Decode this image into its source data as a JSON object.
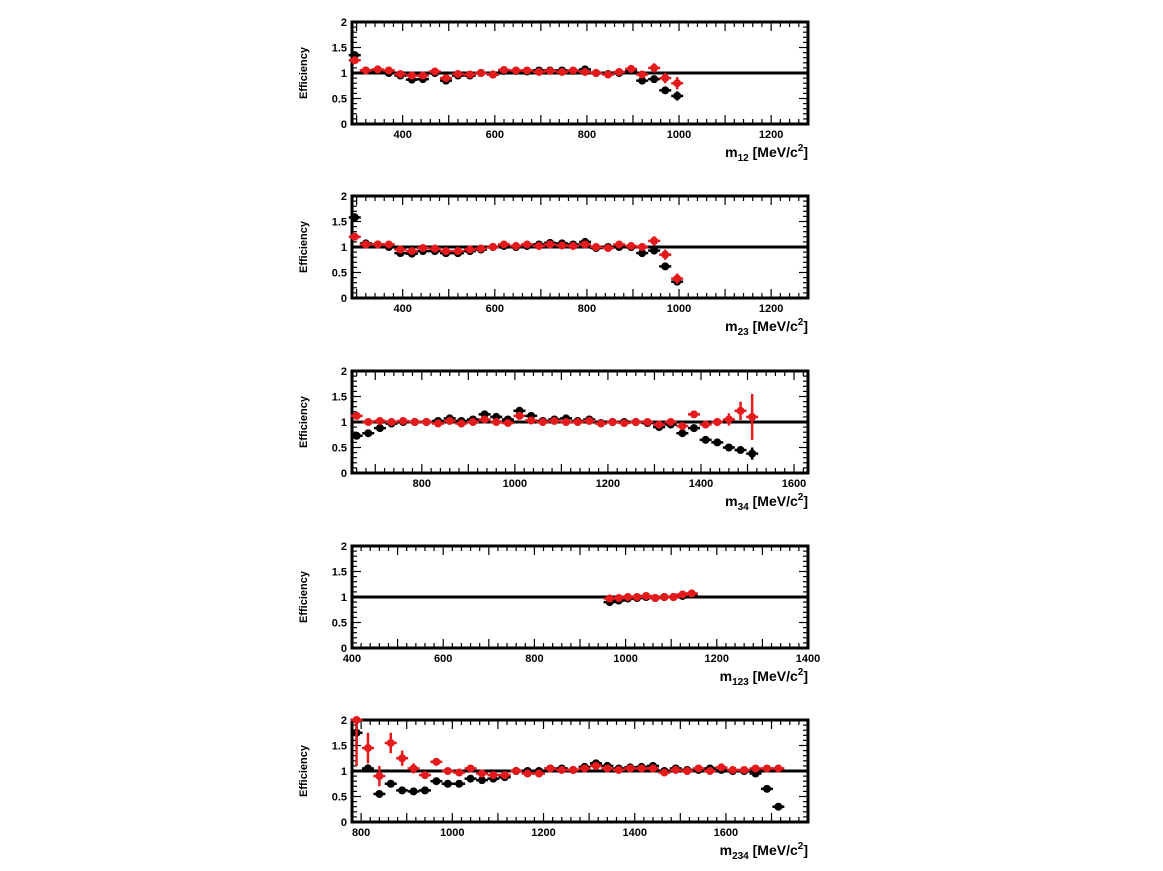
{
  "colors": {
    "black_series": "#000000",
    "red_series": "#e41a1c",
    "axis": "#000000",
    "background": "#ffffff"
  },
  "chart_data": [
    {
      "type": "scatter",
      "xlim": [
        290,
        1280
      ],
      "ylim": [
        0,
        2
      ],
      "x_ticks": [
        400,
        600,
        800,
        1000,
        1200
      ],
      "y_ticks": [
        0,
        0.5,
        1,
        1.5,
        2
      ],
      "y_tick_labels": [
        "0",
        "0.5",
        "1",
        "1.5",
        "2"
      ],
      "ylabel": "Efficiency",
      "xlabel_main": "m",
      "xlabel_sub": "12",
      "xlabel_unit": " [MeV/c",
      "xlabel_sup": "2",
      "xlabel_close": "]",
      "reference_line": 1,
      "series": [
        {
          "color": "black",
          "x": [
            296,
            320,
            346,
            370,
            395,
            420,
            444,
            470,
            494,
            520,
            546,
            570,
            596,
            620,
            646,
            670,
            696,
            720,
            746,
            770,
            796,
            820,
            846,
            870,
            896,
            920,
            946,
            970,
            996
          ],
          "y": [
            1.35,
            1.05,
            1.05,
            1.0,
            0.95,
            0.87,
            0.88,
            1.0,
            0.85,
            0.95,
            0.95,
            1.0,
            0.97,
            1.04,
            1.04,
            1.03,
            1.05,
            1.05,
            1.05,
            1.04,
            1.07,
            1.0,
            0.98,
            1.0,
            1.05,
            0.85,
            0.88,
            0.66,
            0.55
          ],
          "err": [
            0.07,
            0.04,
            0.03,
            0.03,
            0.03,
            0.03,
            0.03,
            0.03,
            0.04,
            0.03,
            0.03,
            0.03,
            0.03,
            0.03,
            0.03,
            0.03,
            0.03,
            0.03,
            0.03,
            0.03,
            0.03,
            0.03,
            0.03,
            0.03,
            0.03,
            0.05,
            0.06,
            0.06,
            0.09
          ]
        },
        {
          "color": "red",
          "x": [
            296,
            320,
            346,
            370,
            395,
            420,
            444,
            470,
            494,
            520,
            546,
            570,
            596,
            620,
            646,
            670,
            696,
            720,
            746,
            770,
            796,
            820,
            846,
            870,
            896,
            920,
            946,
            970,
            996
          ],
          "y": [
            1.25,
            1.05,
            1.07,
            1.05,
            0.98,
            0.95,
            0.95,
            1.03,
            0.9,
            0.98,
            0.97,
            1.0,
            0.97,
            1.06,
            1.05,
            1.05,
            1.02,
            1.04,
            1.02,
            1.05,
            1.02,
            1.0,
            0.97,
            1.02,
            1.08,
            0.97,
            1.1,
            0.9,
            0.8
          ],
          "err": [
            0.07,
            0.04,
            0.03,
            0.03,
            0.03,
            0.03,
            0.03,
            0.03,
            0.04,
            0.03,
            0.03,
            0.03,
            0.03,
            0.03,
            0.03,
            0.03,
            0.03,
            0.03,
            0.03,
            0.03,
            0.03,
            0.03,
            0.03,
            0.03,
            0.04,
            0.06,
            0.09,
            0.1,
            0.12
          ]
        }
      ]
    },
    {
      "type": "scatter",
      "xlim": [
        290,
        1280
      ],
      "ylim": [
        0,
        2
      ],
      "x_ticks": [
        400,
        600,
        800,
        1000,
        1200
      ],
      "y_ticks": [
        0,
        0.5,
        1,
        1.5,
        2
      ],
      "y_tick_labels": [
        "0",
        "0.5",
        "1",
        "1.5",
        "2"
      ],
      "ylabel": "Efficiency",
      "xlabel_main": "m",
      "xlabel_sub": "23",
      "xlabel_unit": " [MeV/c",
      "xlabel_sup": "2",
      "xlabel_close": "]",
      "reference_line": 1,
      "series": [
        {
          "color": "black",
          "x": [
            296,
            320,
            346,
            370,
            395,
            420,
            444,
            470,
            494,
            520,
            546,
            570,
            596,
            620,
            646,
            670,
            696,
            720,
            746,
            770,
            796,
            820,
            846,
            870,
            896,
            920,
            946,
            970,
            996
          ],
          "y": [
            1.58,
            1.07,
            1.05,
            1.0,
            0.88,
            0.87,
            0.92,
            0.92,
            0.88,
            0.88,
            0.92,
            0.95,
            1.0,
            1.02,
            1.0,
            1.02,
            1.05,
            1.08,
            1.07,
            1.05,
            1.1,
            0.98,
            1.0,
            1.0,
            1.0,
            0.88,
            0.93,
            0.62,
            0.32
          ],
          "err": [
            0.08,
            0.04,
            0.03,
            0.03,
            0.03,
            0.03,
            0.03,
            0.03,
            0.03,
            0.03,
            0.03,
            0.03,
            0.03,
            0.03,
            0.03,
            0.03,
            0.03,
            0.03,
            0.03,
            0.03,
            0.04,
            0.03,
            0.03,
            0.03,
            0.04,
            0.05,
            0.06,
            0.06,
            0.07
          ]
        },
        {
          "color": "red",
          "x": [
            296,
            320,
            346,
            370,
            395,
            420,
            444,
            470,
            494,
            520,
            546,
            570,
            596,
            620,
            646,
            670,
            696,
            720,
            746,
            770,
            796,
            820,
            846,
            870,
            896,
            920,
            946,
            970,
            996
          ],
          "y": [
            1.2,
            1.05,
            1.05,
            1.05,
            0.95,
            0.92,
            0.98,
            0.97,
            0.92,
            0.92,
            0.95,
            0.97,
            1.0,
            1.05,
            1.02,
            1.05,
            1.02,
            1.05,
            1.03,
            1.02,
            1.05,
            1.0,
            0.98,
            1.05,
            1.02,
            1.0,
            1.12,
            0.85,
            0.38
          ],
          "err": [
            0.07,
            0.04,
            0.03,
            0.03,
            0.03,
            0.03,
            0.03,
            0.03,
            0.03,
            0.03,
            0.03,
            0.03,
            0.03,
            0.03,
            0.03,
            0.03,
            0.03,
            0.03,
            0.03,
            0.03,
            0.04,
            0.03,
            0.03,
            0.03,
            0.04,
            0.06,
            0.09,
            0.1,
            0.1
          ]
        }
      ]
    },
    {
      "type": "scatter",
      "xlim": [
        650,
        1630
      ],
      "ylim": [
        0,
        2
      ],
      "x_ticks": [
        800,
        1000,
        1200,
        1400,
        1600
      ],
      "y_ticks": [
        0,
        0.5,
        1,
        1.5,
        2
      ],
      "y_tick_labels": [
        "0",
        "0.5",
        "1",
        "1.5",
        "2"
      ],
      "ylabel": "Efficiency",
      "xlabel_main": "m",
      "xlabel_sub": "34",
      "xlabel_unit": " [MeV/c",
      "xlabel_sup": "2",
      "xlabel_close": "]",
      "reference_line": 1,
      "series": [
        {
          "color": "black",
          "x": [
            660,
            685,
            710,
            735,
            760,
            785,
            810,
            835,
            860,
            885,
            910,
            935,
            960,
            985,
            1010,
            1035,
            1060,
            1085,
            1110,
            1135,
            1160,
            1185,
            1210,
            1235,
            1260,
            1285,
            1310,
            1335,
            1360,
            1385,
            1410,
            1435,
            1460,
            1485,
            1510
          ],
          "y": [
            0.73,
            0.78,
            0.88,
            0.97,
            1.0,
            1.0,
            1.0,
            1.02,
            1.07,
            1.02,
            1.05,
            1.15,
            1.1,
            1.05,
            1.22,
            1.12,
            1.02,
            1.05,
            1.07,
            1.02,
            1.05,
            0.98,
            1.0,
            1.0,
            1.0,
            0.98,
            0.9,
            0.95,
            0.78,
            0.88,
            0.65,
            0.6,
            0.5,
            0.45,
            0.38
          ],
          "err": [
            0.04,
            0.03,
            0.03,
            0.03,
            0.03,
            0.03,
            0.03,
            0.03,
            0.03,
            0.03,
            0.03,
            0.03,
            0.03,
            0.03,
            0.04,
            0.03,
            0.03,
            0.03,
            0.03,
            0.03,
            0.03,
            0.03,
            0.03,
            0.03,
            0.03,
            0.03,
            0.03,
            0.03,
            0.03,
            0.03,
            0.03,
            0.03,
            0.03,
            0.04,
            0.12
          ]
        },
        {
          "color": "red",
          "x": [
            660,
            685,
            710,
            735,
            760,
            785,
            810,
            835,
            860,
            885,
            910,
            935,
            960,
            985,
            1010,
            1035,
            1060,
            1085,
            1110,
            1135,
            1160,
            1185,
            1210,
            1235,
            1260,
            1285,
            1310,
            1335,
            1360,
            1385,
            1410,
            1435,
            1460,
            1485,
            1510
          ],
          "y": [
            1.12,
            1.0,
            1.02,
            1.0,
            1.02,
            1.0,
            1.0,
            0.97,
            1.02,
            0.97,
            1.0,
            1.05,
            1.0,
            0.98,
            1.12,
            1.03,
            1.0,
            1.02,
            1.0,
            1.0,
            1.02,
            0.97,
            1.0,
            0.98,
            1.0,
            1.0,
            0.95,
            1.0,
            0.92,
            1.15,
            0.95,
            1.0,
            1.05,
            1.22,
            1.1
          ],
          "err": [
            0.04,
            0.03,
            0.03,
            0.03,
            0.03,
            0.03,
            0.03,
            0.03,
            0.03,
            0.03,
            0.03,
            0.03,
            0.03,
            0.03,
            0.04,
            0.03,
            0.03,
            0.03,
            0.03,
            0.03,
            0.03,
            0.03,
            0.03,
            0.03,
            0.03,
            0.03,
            0.03,
            0.03,
            0.04,
            0.05,
            0.06,
            0.08,
            0.12,
            0.18,
            0.45
          ]
        }
      ]
    },
    {
      "type": "scatter",
      "xlim": [
        400,
        1400
      ],
      "ylim": [
        0,
        2
      ],
      "x_ticks": [
        400,
        600,
        800,
        1000,
        1200,
        1400
      ],
      "y_ticks": [
        0,
        0.5,
        1,
        1.5,
        2
      ],
      "y_tick_labels": [
        "0",
        "0.5",
        "1",
        "1.5",
        "2"
      ],
      "ylabel": "Efficiency",
      "xlabel_main": "m",
      "xlabel_sub": "123",
      "xlabel_unit": " [MeV/c",
      "xlabel_sup": "2",
      "xlabel_close": "]",
      "reference_line": 1,
      "series": [
        {
          "color": "black",
          "x": [
            965,
            985,
            1005,
            1025,
            1045,
            1065,
            1085,
            1105,
            1125,
            1145
          ],
          "y": [
            0.9,
            0.93,
            0.97,
            0.98,
            1.0,
            0.98,
            1.0,
            1.0,
            1.02,
            1.05
          ],
          "err": [
            0.04,
            0.03,
            0.03,
            0.03,
            0.03,
            0.03,
            0.03,
            0.03,
            0.03,
            0.04
          ]
        },
        {
          "color": "red",
          "x": [
            965,
            985,
            1005,
            1025,
            1045,
            1065,
            1085,
            1105,
            1125,
            1145
          ],
          "y": [
            0.97,
            0.98,
            1.0,
            1.0,
            1.02,
            0.98,
            1.0,
            1.0,
            1.05,
            1.07
          ],
          "err": [
            0.04,
            0.03,
            0.03,
            0.03,
            0.03,
            0.03,
            0.03,
            0.03,
            0.03,
            0.04
          ]
        }
      ]
    },
    {
      "type": "scatter",
      "xlim": [
        780,
        1780
      ],
      "ylim": [
        0,
        2
      ],
      "x_ticks": [
        800,
        1000,
        1200,
        1400,
        1600
      ],
      "y_ticks": [
        0,
        0.5,
        1,
        1.5,
        2
      ],
      "y_tick_labels": [
        "0",
        "0.5",
        "1",
        "1.5",
        "2"
      ],
      "ylabel": "Efficiency",
      "xlabel_main": "m",
      "xlabel_sub": "234",
      "xlabel_unit": " [MeV/c",
      "xlabel_sup": "2",
      "xlabel_close": "]",
      "reference_line": 1,
      "series": [
        {
          "color": "black",
          "x": [
            790,
            815,
            840,
            865,
            890,
            915,
            940,
            965,
            990,
            1015,
            1040,
            1065,
            1090,
            1115,
            1140,
            1165,
            1190,
            1215,
            1240,
            1265,
            1290,
            1315,
            1340,
            1365,
            1390,
            1415,
            1440,
            1465,
            1490,
            1515,
            1540,
            1565,
            1590,
            1615,
            1640,
            1665,
            1690,
            1715
          ],
          "y": [
            1.75,
            1.05,
            0.55,
            0.75,
            0.62,
            0.6,
            0.62,
            0.8,
            0.75,
            0.75,
            0.85,
            0.82,
            0.85,
            0.88,
            1.0,
            1.0,
            1.0,
            1.05,
            1.05,
            1.02,
            1.08,
            1.15,
            1.1,
            1.05,
            1.07,
            1.08,
            1.1,
            1.0,
            1.05,
            1.02,
            1.02,
            1.05,
            1.02,
            1.0,
            1.0,
            0.95,
            0.65,
            0.3
          ],
          "err": [
            0.3,
            0.08,
            0.06,
            0.05,
            0.04,
            0.04,
            0.04,
            0.04,
            0.04,
            0.03,
            0.03,
            0.03,
            0.03,
            0.03,
            0.03,
            0.03,
            0.03,
            0.03,
            0.03,
            0.03,
            0.03,
            0.03,
            0.03,
            0.03,
            0.03,
            0.03,
            0.03,
            0.03,
            0.03,
            0.03,
            0.03,
            0.03,
            0.03,
            0.03,
            0.03,
            0.04,
            0.05,
            0.05
          ]
        },
        {
          "color": "red",
          "x": [
            790,
            815,
            840,
            865,
            890,
            915,
            940,
            965,
            990,
            1015,
            1040,
            1065,
            1090,
            1115,
            1140,
            1165,
            1190,
            1215,
            1240,
            1265,
            1290,
            1315,
            1340,
            1365,
            1390,
            1415,
            1440,
            1465,
            1490,
            1515,
            1540,
            1565,
            1590,
            1615,
            1640,
            1665,
            1690,
            1715
          ],
          "y": [
            2.0,
            1.45,
            0.9,
            1.55,
            1.25,
            1.05,
            0.92,
            1.18,
            1.0,
            0.97,
            1.05,
            0.95,
            0.92,
            0.92,
            1.0,
            0.95,
            0.95,
            1.05,
            1.02,
            1.02,
            1.05,
            1.1,
            1.05,
            1.02,
            1.05,
            1.05,
            1.05,
            0.97,
            1.02,
            1.0,
            1.05,
            1.0,
            1.07,
            1.02,
            1.02,
            1.05,
            1.05,
            1.05
          ],
          "err": [
            0.9,
            0.3,
            0.2,
            0.2,
            0.15,
            0.1,
            0.07,
            0.07,
            0.05,
            0.04,
            0.04,
            0.04,
            0.04,
            0.03,
            0.03,
            0.03,
            0.03,
            0.03,
            0.03,
            0.03,
            0.03,
            0.03,
            0.03,
            0.03,
            0.03,
            0.03,
            0.03,
            0.03,
            0.03,
            0.03,
            0.03,
            0.03,
            0.03,
            0.03,
            0.03,
            0.04,
            0.05,
            0.06
          ]
        }
      ]
    }
  ]
}
